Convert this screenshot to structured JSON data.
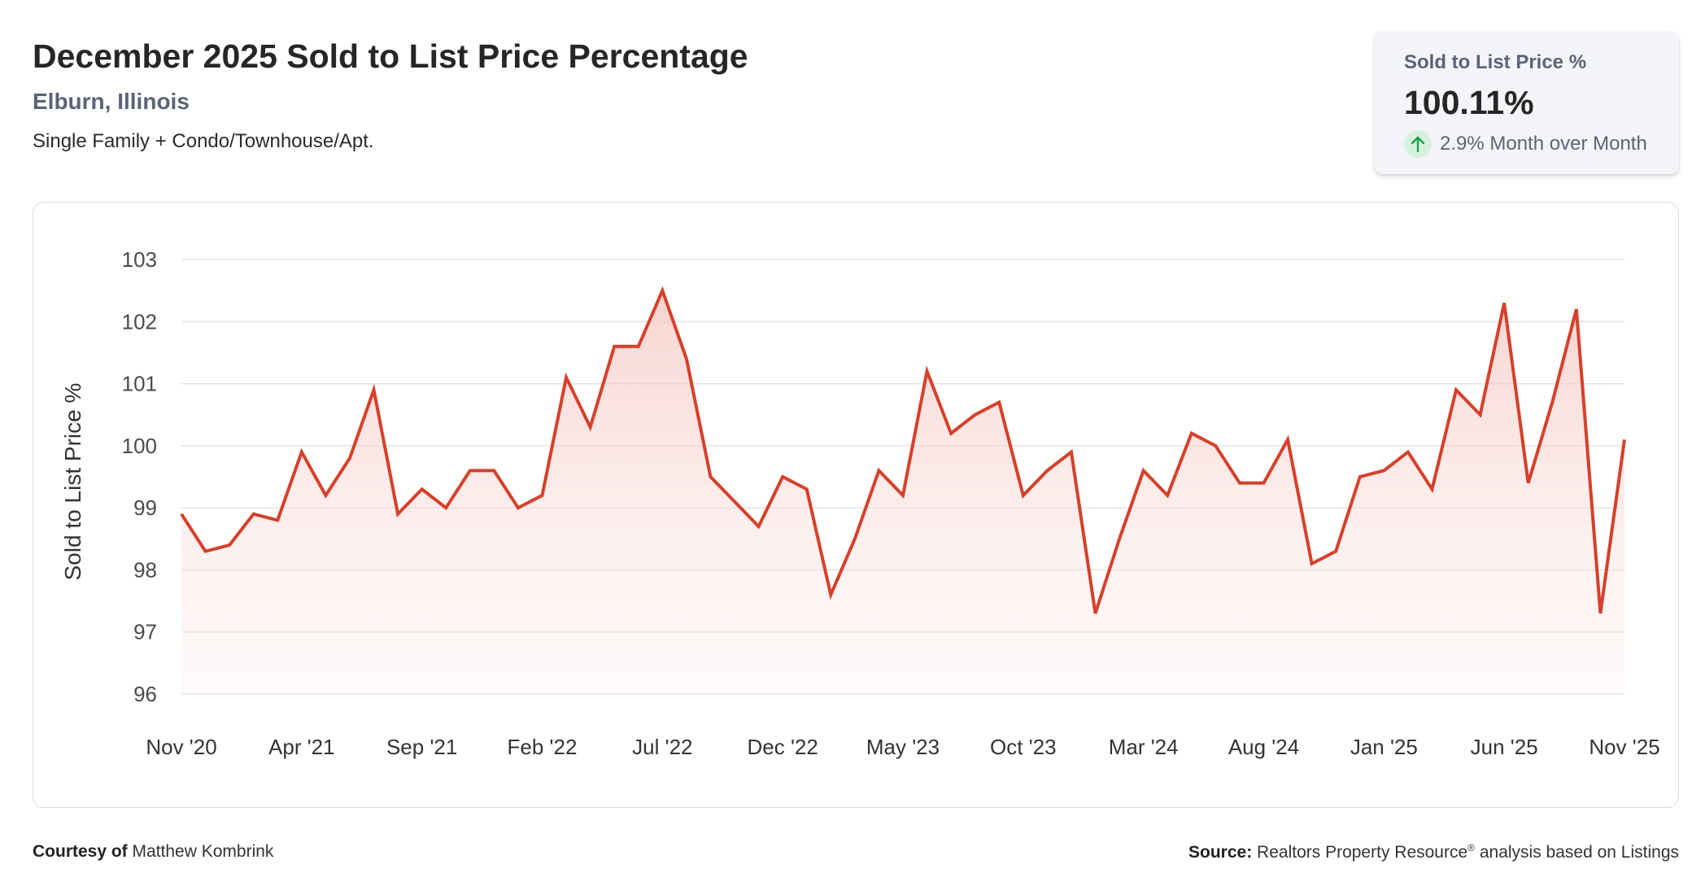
{
  "header": {
    "title": "December 2025 Sold to List Price Percentage",
    "location": "Elburn, Illinois",
    "subtitle": "Single Family + Condo/Townhouse/Apt."
  },
  "stat_card": {
    "label": "Sold to List Price %",
    "value": "100.11%",
    "change_text": "2.9% Month over Month",
    "change_icon": "arrow-up-icon",
    "change_color": "#1e9e4a"
  },
  "footer": {
    "courtesy_label": "Courtesy of",
    "courtesy_name": "Matthew Kombrink",
    "source_label": "Source:",
    "source_text_main": "Realtors Property Resource",
    "source_text_sup": "®",
    "source_text_rest": "analysis based on Listings"
  },
  "colors": {
    "line": "#d6402b",
    "area_top": "#f4c6c0",
    "grid": "#e3e3e3",
    "axis_text": "#4a4a4a"
  },
  "chart_data": {
    "type": "area",
    "title": "",
    "xlabel": "",
    "ylabel": "Sold to List Price %",
    "ylim": [
      96,
      103
    ],
    "yticks": [
      "96",
      "97",
      "98",
      "99",
      "100",
      "101",
      "102",
      "103"
    ],
    "grid": true,
    "x_tick_labels": [
      "Nov '20",
      "Apr '21",
      "Sep '21",
      "Feb '22",
      "Jul '22",
      "Dec '22",
      "May '23",
      "Oct '23",
      "Mar '24",
      "Aug '24",
      "Jan '25",
      "Jun '25",
      "Nov '25"
    ],
    "x": [
      "Nov '20",
      "Dec '20",
      "Jan '21",
      "Feb '21",
      "Mar '21",
      "Apr '21",
      "May '21",
      "Jun '21",
      "Jul '21",
      "Aug '21",
      "Sep '21",
      "Oct '21",
      "Nov '21",
      "Dec '21",
      "Jan '22",
      "Feb '22",
      "Mar '22",
      "Apr '22",
      "May '22",
      "Jun '22",
      "Jul '22",
      "Aug '22",
      "Sep '22",
      "Oct '22",
      "Nov '22",
      "Dec '22",
      "Jan '23",
      "Feb '23",
      "Mar '23",
      "Apr '23",
      "May '23",
      "Jun '23",
      "Jul '23",
      "Aug '23",
      "Sep '23",
      "Oct '23",
      "Nov '23",
      "Dec '23",
      "Jan '24",
      "Feb '24",
      "Mar '24",
      "Apr '24",
      "May '24",
      "Jun '24",
      "Jul '24",
      "Aug '24",
      "Sep '24",
      "Oct '24",
      "Nov '24",
      "Dec '24",
      "Jan '25",
      "Feb '25",
      "Mar '25",
      "Apr '25",
      "May '25",
      "Jun '25",
      "Jul '25",
      "Aug '25",
      "Sep '25",
      "Oct '25",
      "Nov '25"
    ],
    "series": [
      {
        "values": [
          98.9,
          98.3,
          98.4,
          98.9,
          98.8,
          99.9,
          99.2,
          99.8,
          100.9,
          98.9,
          99.3,
          99.0,
          99.6,
          99.6,
          99.0,
          99.2,
          101.1,
          100.3,
          101.6,
          101.6,
          102.5,
          101.4,
          99.5,
          99.1,
          98.7,
          99.5,
          99.3,
          97.6,
          98.5,
          99.6,
          99.2,
          101.2,
          100.2,
          100.5,
          100.7,
          99.2,
          99.6,
          99.9,
          97.3,
          98.5,
          99.6,
          99.2,
          100.2,
          100.0,
          99.4,
          99.4,
          100.1,
          98.1,
          98.3,
          99.5,
          99.6,
          99.9,
          99.3,
          100.9,
          100.5,
          102.3,
          99.4,
          100.7,
          102.2,
          97.3,
          100.1
        ]
      }
    ]
  }
}
